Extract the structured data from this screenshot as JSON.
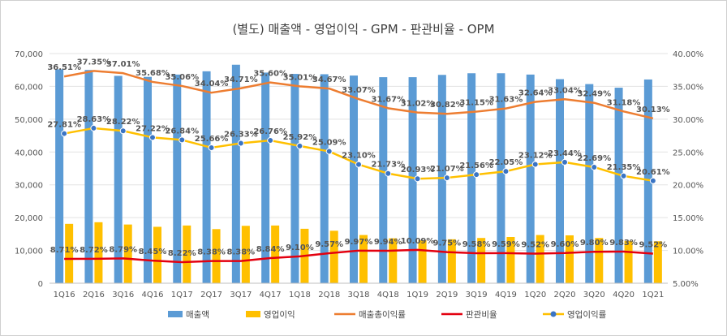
{
  "chart_data": {
    "type": "bar+line",
    "title": "(별도) 매출액 - 영업이익 - GPM - 판관비율 - OPM",
    "categories": [
      "1Q16",
      "2Q16",
      "3Q16",
      "4Q16",
      "1Q17",
      "2Q17",
      "3Q17",
      "4Q17",
      "1Q18",
      "2Q18",
      "3Q18",
      "4Q18",
      "1Q19",
      "2Q19",
      "3Q19",
      "4Q19",
      "1Q20",
      "2Q20",
      "3Q20",
      "4Q20",
      "1Q21"
    ],
    "left_axis": {
      "min": 0,
      "max": 70000,
      "step": 10000,
      "tick_labels": [
        "0",
        "10,000",
        "20,000",
        "30,000",
        "40,000",
        "50,000",
        "60,000",
        "70,000"
      ]
    },
    "right_axis": {
      "min": 5,
      "max": 40,
      "step": 5,
      "tick_labels": [
        "5.00%",
        "10.00%",
        "15.00%",
        "20.00%",
        "25.00%",
        "30.00%",
        "35.00%",
        "40.00%"
      ]
    },
    "series": [
      {
        "name": "매출액",
        "type": "bar",
        "axis": "left",
        "color": "#5b9bd5",
        "values": [
          65200,
          65000,
          63200,
          62900,
          63600,
          64600,
          66600,
          64200,
          63800,
          63700,
          63300,
          62800,
          62800,
          63500,
          64000,
          64000,
          63600,
          62200,
          60700,
          59600,
          62100
        ]
      },
      {
        "name": "영업이익",
        "type": "bar",
        "axis": "left",
        "color": "#ffc000",
        "values": [
          18100,
          18600,
          17900,
          17200,
          17600,
          16500,
          17500,
          17600,
          16600,
          16000,
          14700,
          13700,
          13100,
          13400,
          13800,
          14100,
          14700,
          14600,
          13800,
          12900,
          12800
        ]
      },
      {
        "name": "매출총이익률",
        "type": "line",
        "axis": "right",
        "color": "#ed7d31",
        "values": [
          36.51,
          37.35,
          37.01,
          35.68,
          35.06,
          34.04,
          34.71,
          35.6,
          35.01,
          34.67,
          33.07,
          31.67,
          31.02,
          30.82,
          31.15,
          31.63,
          32.64,
          33.04,
          32.49,
          31.18,
          30.13
        ],
        "labels": [
          "36.51%",
          "37.35%",
          "37.01%",
          "35.68%",
          "35.06%",
          "34.04%",
          "34.71%",
          "35.60%",
          "35.01%",
          "34.67%",
          "33.07%",
          "31.67%",
          "31.02%",
          "30.82%",
          "31.15%",
          "31.63%",
          "32.64%",
          "33.04%",
          "32.49%",
          "31.18%",
          "30.13%"
        ]
      },
      {
        "name": "판관비율",
        "type": "line",
        "axis": "right",
        "color": "#e3000f",
        "values": [
          8.71,
          8.72,
          8.79,
          8.45,
          8.22,
          8.38,
          8.38,
          8.84,
          9.1,
          9.57,
          9.97,
          9.94,
          10.09,
          9.75,
          9.58,
          9.59,
          9.52,
          9.6,
          9.8,
          9.83,
          9.52
        ],
        "labels": [
          "8.71%",
          "8.72%",
          "8.79%",
          "8.45%",
          "8.22%",
          "8.38%",
          "8.38%",
          "8.84%",
          "9.10%",
          "9.57%",
          "9.97%",
          "9.94%",
          "10.09%",
          "9.75%",
          "9.58%",
          "9.59%",
          "9.52%",
          "9.60%",
          "9.80%",
          "9.83%",
          "9.52%"
        ]
      },
      {
        "name": "영업이익률",
        "type": "line",
        "axis": "right",
        "color": "#ffc000",
        "marker_color": "#3a74c4",
        "values": [
          27.81,
          28.63,
          28.22,
          27.22,
          26.84,
          25.66,
          26.33,
          26.76,
          25.92,
          25.09,
          23.1,
          21.73,
          20.93,
          21.07,
          21.56,
          22.05,
          23.12,
          23.44,
          22.69,
          21.35,
          20.61
        ],
        "labels": [
          "27.81%",
          "28.63%",
          "28.22%",
          "27.22%",
          "26.84%",
          "25.66%",
          "26.33%",
          "26.76%",
          "25.92%",
          "25.09%",
          "23.10%",
          "21.73%",
          "20.93%",
          "21.07%",
          "21.56%",
          "22.05%",
          "23.12%",
          "23.44%",
          "22.69%",
          "21.35%",
          "20.61%"
        ]
      }
    ],
    "grid": true,
    "legend_position": "bottom"
  }
}
